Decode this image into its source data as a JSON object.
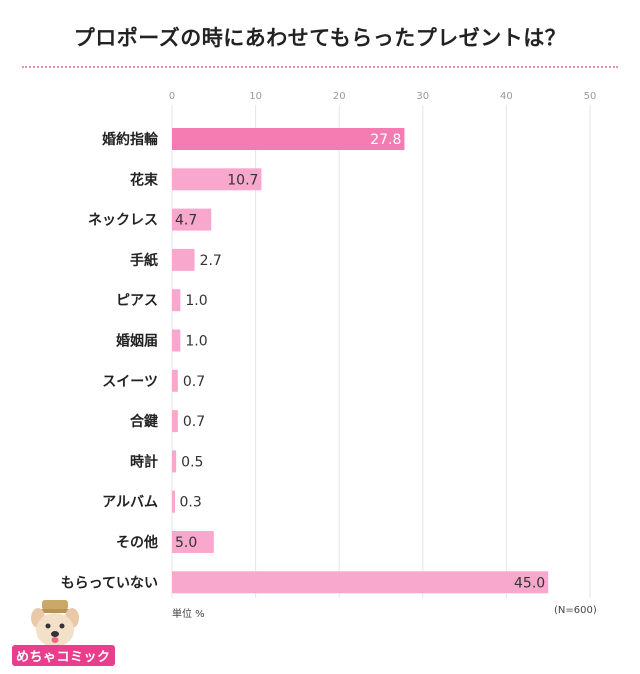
{
  "title": "プロポーズの時にあわせてもらったプレゼントは？",
  "footer": {
    "unit": "単位 %",
    "n": "(N=600)"
  },
  "logo": {
    "text": "めちゃコミック"
  },
  "colors": {
    "accent_bar": "#f47cb3",
    "bar": "#f8a8cc",
    "title_rule": "#f08cb4",
    "grid": "#e6e6e6"
  },
  "chart_data": {
    "type": "bar",
    "orientation": "horizontal",
    "title": "プロポーズの時にあわせてもらったプレゼントは？",
    "xlim": [
      0,
      50
    ],
    "xticks": [
      0,
      10,
      20,
      30,
      40,
      50
    ],
    "grid": true,
    "categories": [
      "婚約指輪",
      "花束",
      "ネックレス",
      "手紙",
      "ピアス",
      "婚姻届",
      "スイーツ",
      "合鍵",
      "時計",
      "アルバム",
      "その他",
      "もらっていない"
    ],
    "values": [
      27.8,
      10.7,
      4.7,
      2.7,
      1.0,
      1.0,
      0.7,
      0.7,
      0.5,
      0.3,
      5.0,
      45.0
    ],
    "value_labels": [
      "27.8",
      "10.7",
      "4.7",
      "2.7",
      "1.0",
      "1.0",
      "0.7",
      "0.7",
      "0.5",
      "0.3",
      "5.0",
      "45.0"
    ],
    "unit": "単位 %",
    "n": "(N=600)"
  }
}
